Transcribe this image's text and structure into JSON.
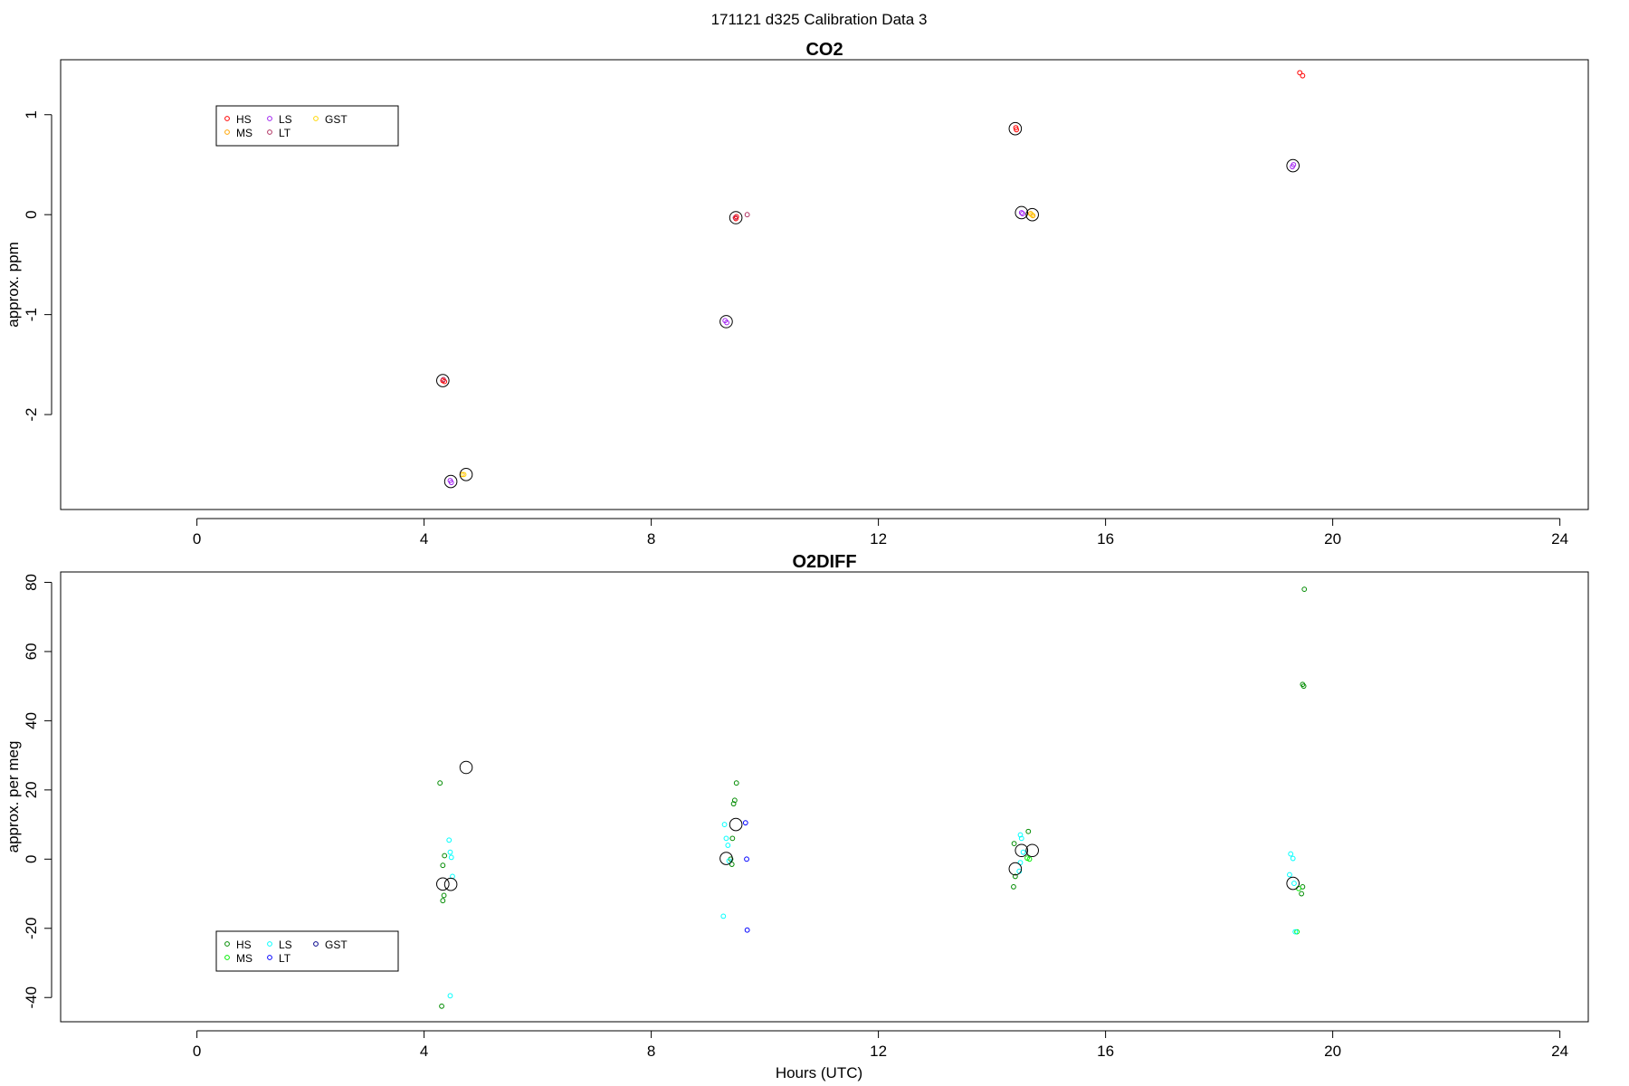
{
  "figure": {
    "title": "171121   d325   Calibration Data 3",
    "xlabel": "Hours (UTC)",
    "xlim": [
      -2.4,
      24.5
    ],
    "xticks": [
      "0",
      "4",
      "8",
      "12",
      "16",
      "20",
      "24"
    ]
  },
  "chart_data": [
    {
      "type": "scatter",
      "title": "CO2",
      "ylabel": "approx. ppm",
      "ylim": [
        -2.95,
        1.55
      ],
      "yticks": [
        "-2",
        "-1",
        "0",
        "1"
      ],
      "grid": false,
      "legend_placement": "top-left",
      "legend_entries": [
        {
          "label": "HS",
          "color": "#ff0000"
        },
        {
          "label": "MS",
          "color": "#ffa500"
        },
        {
          "label": "LS",
          "color": "#a020f0"
        },
        {
          "label": "LT",
          "color": "#b03060"
        },
        {
          "label": "GST",
          "color": "#ffd700"
        }
      ],
      "series": [
        {
          "name": "HS",
          "color": "#ff0000",
          "points": [
            [
              4.33,
              -1.66
            ],
            [
              4.36,
              -1.67
            ],
            [
              9.5,
              -0.02
            ],
            [
              9.49,
              -0.04
            ],
            [
              14.42,
              0.87
            ],
            [
              14.43,
              0.85
            ],
            [
              19.42,
              1.42
            ],
            [
              19.47,
              1.39
            ]
          ]
        },
        {
          "name": "MS",
          "color": "#ffa500",
          "points": [
            [
              4.67,
              -2.6
            ],
            [
              14.68,
              0.01
            ],
            [
              14.72,
              -0.01
            ]
          ]
        },
        {
          "name": "LS",
          "color": "#a020f0",
          "points": [
            [
              4.46,
              -2.66
            ],
            [
              4.48,
              -2.68
            ],
            [
              9.3,
              -1.06
            ],
            [
              9.33,
              -1.08
            ],
            [
              14.52,
              0.02
            ],
            [
              14.54,
              0.01
            ],
            [
              19.29,
              0.48
            ],
            [
              19.31,
              0.5
            ]
          ]
        },
        {
          "name": "LT",
          "color": "#b03060",
          "points": [
            [
              4.34,
              -1.65
            ],
            [
              9.48,
              -0.03
            ],
            [
              9.69,
              0.0
            ]
          ]
        },
        {
          "name": "GST",
          "color": "#ffd700",
          "points": [
            [
              4.7,
              -2.6
            ],
            [
              14.7,
              0.0
            ]
          ]
        }
      ],
      "means": {
        "color": "#000000",
        "points": [
          [
            4.33,
            -1.66
          ],
          [
            4.47,
            -2.67
          ],
          [
            4.74,
            -2.6
          ],
          [
            9.32,
            -1.07
          ],
          [
            9.49,
            -0.03
          ],
          [
            14.41,
            0.86
          ],
          [
            14.52,
            0.02
          ],
          [
            14.71,
            0.0
          ],
          [
            19.3,
            0.49
          ]
        ]
      }
    },
    {
      "type": "scatter",
      "title": "O2DIFF",
      "ylabel": "approx. per meg",
      "ylim": [
        -47,
        83
      ],
      "yticks": [
        "-40",
        "-20",
        "0",
        "20",
        "40",
        "60",
        "80"
      ],
      "grid": false,
      "legend_placement": "bottom-left",
      "legend_entries": [
        {
          "label": "HS",
          "color": "#008b00"
        },
        {
          "label": "MS",
          "color": "#00ee00"
        },
        {
          "label": "LS",
          "color": "#00ffff"
        },
        {
          "label": "LT",
          "color": "#0000ff"
        },
        {
          "label": "GST",
          "color": "#00008b"
        }
      ],
      "series": [
        {
          "name": "HS",
          "color": "#008b00",
          "points": [
            [
              4.28,
              22
            ],
            [
              4.36,
              1
            ],
            [
              4.33,
              -1.8
            ],
            [
              4.35,
              -10.5
            ],
            [
              4.33,
              -12
            ],
            [
              4.31,
              -42.5
            ],
            [
              9.5,
              22
            ],
            [
              9.47,
              17
            ],
            [
              9.45,
              16
            ],
            [
              9.43,
              6
            ],
            [
              9.4,
              0
            ],
            [
              9.42,
              -1.5
            ],
            [
              14.39,
              4.5
            ],
            [
              14.41,
              -5
            ],
            [
              14.38,
              -8
            ],
            [
              14.64,
              8
            ],
            [
              19.47,
              -8
            ],
            [
              19.45,
              -10
            ],
            [
              19.5,
              78
            ],
            [
              19.47,
              50.5
            ],
            [
              19.49,
              50
            ]
          ]
        },
        {
          "name": "MS",
          "color": "#00ee00",
          "points": [
            [
              14.62,
              0.3
            ],
            [
              14.66,
              0
            ],
            [
              19.37,
              -21
            ],
            [
              19.4,
              -8.5
            ]
          ]
        },
        {
          "name": "LS",
          "color": "#00ffff",
          "points": [
            [
              4.44,
              5.5
            ],
            [
              4.46,
              2
            ],
            [
              4.48,
              0.5
            ],
            [
              4.5,
              -5
            ],
            [
              4.46,
              -39.5
            ],
            [
              9.27,
              -16.5
            ],
            [
              9.29,
              10
            ],
            [
              9.32,
              6
            ],
            [
              9.35,
              4
            ],
            [
              9.37,
              -0.5
            ],
            [
              14.5,
              7
            ],
            [
              14.52,
              6
            ],
            [
              14.55,
              2
            ],
            [
              14.5,
              -1
            ],
            [
              14.48,
              -3.5
            ],
            [
              19.26,
              1.5
            ],
            [
              19.3,
              0.2
            ],
            [
              19.24,
              -4.5
            ],
            [
              19.32,
              -7
            ],
            [
              19.34,
              -21
            ]
          ]
        },
        {
          "name": "LT",
          "color": "#0000ff",
          "points": [
            [
              9.66,
              10.5
            ],
            [
              9.68,
              0
            ],
            [
              9.69,
              -20.5
            ]
          ]
        },
        {
          "name": "GST",
          "color": "#00008b",
          "points": []
        }
      ],
      "means": {
        "color": "#000000",
        "points": [
          [
            4.33,
            -7.2
          ],
          [
            4.47,
            -7.3
          ],
          [
            4.74,
            26.5
          ],
          [
            9.32,
            0.2
          ],
          [
            9.49,
            10
          ],
          [
            14.41,
            -2.8
          ],
          [
            14.52,
            2.5
          ],
          [
            14.71,
            2.5
          ],
          [
            19.3,
            -7
          ]
        ]
      }
    }
  ]
}
